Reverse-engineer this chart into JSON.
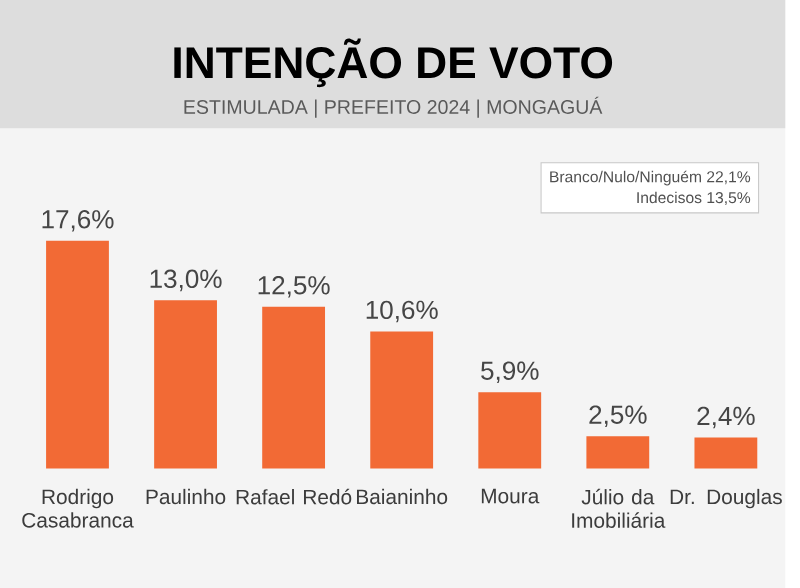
{
  "chart_data": {
    "type": "bar",
    "title": "INTENÇÃO DE VOTO",
    "subtitle": "ESTIMULADA | PREFEITO 2024 | MONGAGUÁ",
    "categories": [
      "Rodrigo Casabranca",
      "Paulinho",
      "Rafael Redó",
      "Baianinho",
      "Moura",
      "Júlio da Imobiliária",
      "Dr. Douglas"
    ],
    "values": [
      17.6,
      13.0,
      12.5,
      10.6,
      5.9,
      2.5,
      2.4
    ],
    "value_labels": [
      "17,6%",
      "13,0%",
      "12,5%",
      "10,6%",
      "5,9%",
      "2,5%",
      "2,4%"
    ],
    "color": "#f26a35",
    "annotations": [
      "Branco/Nulo/Ninguém 22,1%",
      "Indecisos 13,5%"
    ]
  }
}
